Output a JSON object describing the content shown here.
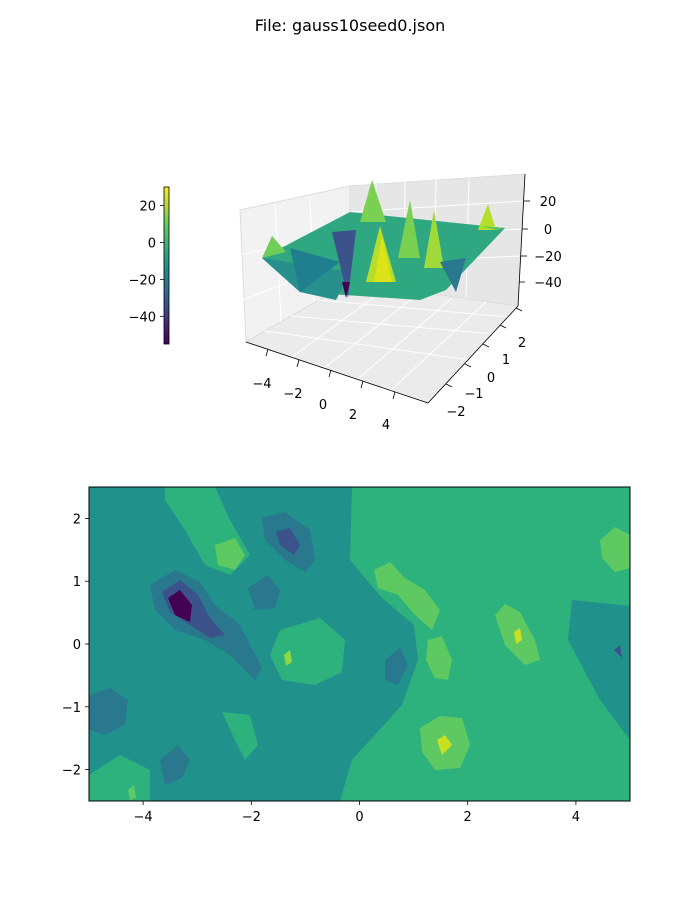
{
  "title": "File: gauss10seed0.json",
  "chart_data": [
    {
      "type": "surface",
      "colormap": "viridis",
      "x_ticks": [
        "−4",
        "−2",
        "0",
        "2",
        "4"
      ],
      "y_ticks": [
        "−2",
        "−1",
        "0",
        "1",
        "2"
      ],
      "z_ticks": [
        "20",
        "0",
        "−20",
        "−40"
      ],
      "xlim": [
        -5,
        5
      ],
      "ylim": [
        -2.5,
        2.5
      ],
      "zlim": [
        -55,
        30
      ],
      "colorbar": {
        "ticks": [
          "20",
          "0",
          "−20",
          "−40"
        ],
        "range": [
          -55,
          30
        ]
      }
    },
    {
      "type": "contour",
      "colormap": "viridis",
      "x_ticks": [
        "−4",
        "−2",
        "0",
        "2",
        "4"
      ],
      "y_ticks": [
        "2",
        "1",
        "0",
        "−1",
        "−2"
      ],
      "xlim": [
        -5,
        5
      ],
      "ylim": [
        -2.5,
        2.5
      ],
      "levels": [
        -50,
        -40,
        -30,
        -20,
        -10,
        0,
        10,
        20,
        30
      ]
    }
  ]
}
